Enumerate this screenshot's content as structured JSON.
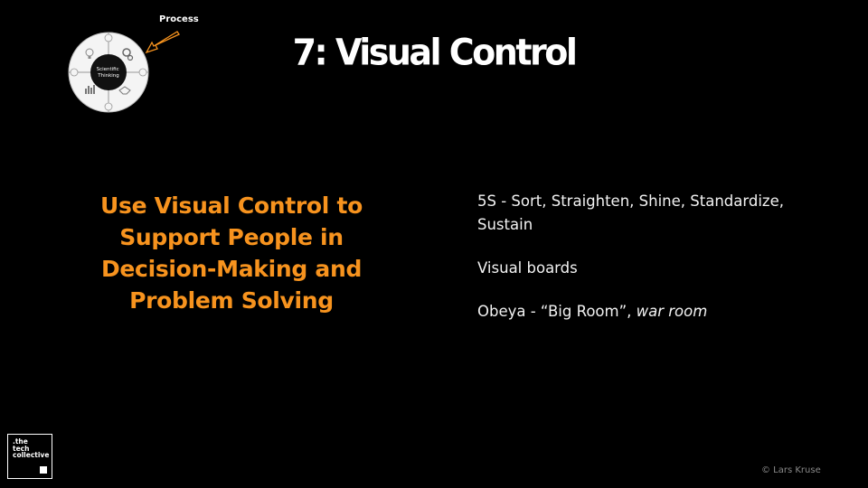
{
  "slide": {
    "title": "7:  Visual Control",
    "process_label": "Process",
    "wheel_center_text": "Scientific Thinking",
    "heading_lines": [
      "Use Visual Control to",
      "Support People in",
      "Decision-Making and",
      "Problem Solving"
    ],
    "bullets": {
      "b1": "5S - Sort, Straighten, Shine, Standardize, Sustain",
      "b2": "Visual boards",
      "b3_prefix": "Obeya - “Big Room”, ",
      "b3_italic": "war room"
    },
    "logo_lines": [
      ".the",
      "tech",
      "collective"
    ],
    "copyright": "© Lars Kruse"
  },
  "colors": {
    "background": "#000000",
    "heading": "#f7931e",
    "arrow": "#f7931e"
  }
}
